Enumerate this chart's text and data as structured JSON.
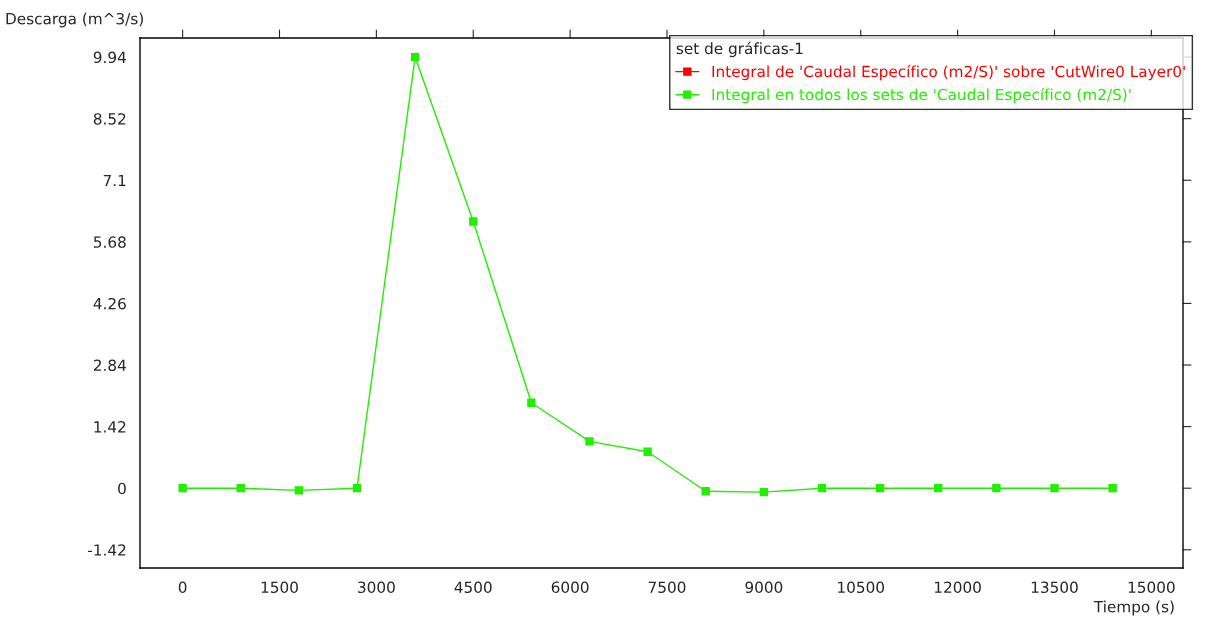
{
  "chart_data": {
    "type": "line",
    "xlabel": "Tiempo (s)",
    "ylabel": "Descarga (m^3/s)",
    "legend_title": "set de gráficas-1",
    "x": [
      0,
      900,
      1800,
      2700,
      3600,
      4500,
      5400,
      6300,
      7200,
      8100,
      9000,
      9900,
      10800,
      11700,
      12600,
      13500,
      14400
    ],
    "series": [
      {
        "name": "Integral de 'Caudal Específico (m2/S)' sobre 'CutWire0 Layer0'",
        "color": "#ff0000",
        "values": [
          null,
          null,
          null,
          null,
          null,
          null,
          null,
          null,
          null,
          null,
          null,
          null,
          null,
          null,
          null,
          null,
          null
        ]
      },
      {
        "name": "Integral en todos los sets de 'Caudal Específico (m2/S)'",
        "color": "#22ee00",
        "values": [
          0,
          0,
          -0.05,
          0,
          9.94,
          6.15,
          1.97,
          1.08,
          0.84,
          -0.07,
          -0.09,
          0,
          0,
          0,
          0,
          0,
          0
        ]
      }
    ],
    "xlim": [
      -660,
      15490
    ],
    "xticks": [
      0,
      1500,
      3000,
      4500,
      6000,
      7500,
      9000,
      10500,
      12000,
      13500,
      15000
    ],
    "ylim": [
      -1.84,
      10.38
    ],
    "yticks": [
      -1.42,
      0,
      1.42,
      2.84,
      4.26,
      5.68,
      7.1,
      8.52,
      9.94
    ],
    "marker": "square",
    "line_style": "solid",
    "grid": false,
    "legend": "top right"
  }
}
